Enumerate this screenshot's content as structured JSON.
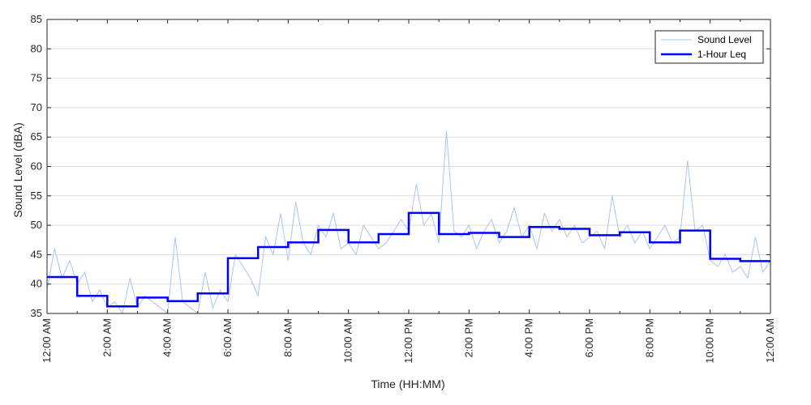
{
  "chart_data": {
    "type": "line",
    "title": "",
    "xlabel": "Time (HH:MM)",
    "ylabel": "Sound Level (dBA)",
    "xlim_hours": [
      0,
      24
    ],
    "ylim": [
      35,
      85
    ],
    "yticks": [
      35,
      40,
      45,
      50,
      55,
      60,
      65,
      70,
      75,
      80,
      85
    ],
    "xticks": [
      {
        "hour": 0,
        "label": "12:00 AM"
      },
      {
        "hour": 2,
        "label": "2:00 AM"
      },
      {
        "hour": 4,
        "label": "4:00 AM"
      },
      {
        "hour": 6,
        "label": "6:00 AM"
      },
      {
        "hour": 8,
        "label": "8:00 AM"
      },
      {
        "hour": 10,
        "label": "10:00 AM"
      },
      {
        "hour": 12,
        "label": "12:00 PM"
      },
      {
        "hour": 14,
        "label": "2:00 PM"
      },
      {
        "hour": 16,
        "label": "4:00 PM"
      },
      {
        "hour": 18,
        "label": "6:00 PM"
      },
      {
        "hour": 20,
        "label": "8:00 PM"
      },
      {
        "hour": 22,
        "label": "10:00 PM"
      },
      {
        "hour": 24,
        "label": "12:00 AM"
      }
    ],
    "grid": "horizontal",
    "legend_position": "top-right",
    "series": [
      {
        "name": "Sound Level",
        "color": "#a9c4f5",
        "style": "thin-line",
        "x_hours": [
          0,
          0.25,
          0.5,
          0.75,
          1,
          1.25,
          1.5,
          1.75,
          2,
          2.25,
          2.5,
          2.75,
          3,
          3.25,
          3.5,
          3.75,
          4,
          4.25,
          4.5,
          4.75,
          5,
          5.25,
          5.5,
          5.75,
          6,
          6.25,
          6.5,
          6.75,
          7,
          7.25,
          7.5,
          7.75,
          8,
          8.25,
          8.5,
          8.75,
          9,
          9.25,
          9.5,
          9.75,
          10,
          10.25,
          10.5,
          10.75,
          11,
          11.25,
          11.5,
          11.75,
          12,
          12.25,
          12.5,
          12.75,
          13,
          13.25,
          13.5,
          13.75,
          14,
          14.25,
          14.5,
          14.75,
          15,
          15.25,
          15.5,
          15.75,
          16,
          16.25,
          16.5,
          16.75,
          17,
          17.25,
          17.5,
          17.75,
          18,
          18.25,
          18.5,
          18.75,
          19,
          19.25,
          19.5,
          19.75,
          20,
          20.25,
          20.5,
          20.75,
          21,
          21.25,
          21.5,
          21.75,
          22,
          22.25,
          22.5,
          22.75,
          23,
          23.25,
          23.5,
          23.75,
          24
        ],
        "values": [
          39,
          46,
          41,
          44,
          40,
          42,
          37,
          39,
          36,
          37,
          35,
          41,
          36,
          38,
          37,
          36,
          35,
          48,
          37,
          36,
          35,
          42,
          36,
          39,
          37,
          45,
          43,
          41,
          38,
          48,
          45,
          52,
          44,
          54,
          47,
          45,
          50,
          48,
          52,
          46,
          47,
          45,
          50,
          48,
          46,
          47,
          49,
          51,
          49,
          57,
          50,
          52,
          47,
          66,
          49,
          48,
          50,
          46,
          49,
          51,
          47,
          49,
          53,
          48,
          50,
          46,
          52,
          49,
          51,
          48,
          50,
          47,
          48,
          49,
          46,
          55,
          48,
          50,
          47,
          49,
          46,
          48,
          50,
          47,
          48,
          61,
          49,
          50,
          44,
          43,
          45,
          42,
          43,
          41,
          48,
          42,
          44
        ]
      },
      {
        "name": "1-Hour Leq",
        "color": "#0000ff",
        "style": "step",
        "x_hours": [
          0,
          1,
          2,
          3,
          4,
          5,
          6,
          7,
          8,
          9,
          10,
          11,
          12,
          13,
          14,
          15,
          16,
          17,
          18,
          19,
          20,
          21,
          22,
          23
        ],
        "values": [
          41.2,
          38.0,
          36.2,
          37.7,
          37.1,
          38.4,
          44.4,
          46.3,
          47.1,
          49.2,
          47.1,
          48.5,
          52.1,
          48.5,
          48.7,
          48.0,
          49.7,
          49.4,
          48.3,
          48.8,
          47.1,
          49.1,
          44.3,
          43.9
        ]
      }
    ]
  }
}
